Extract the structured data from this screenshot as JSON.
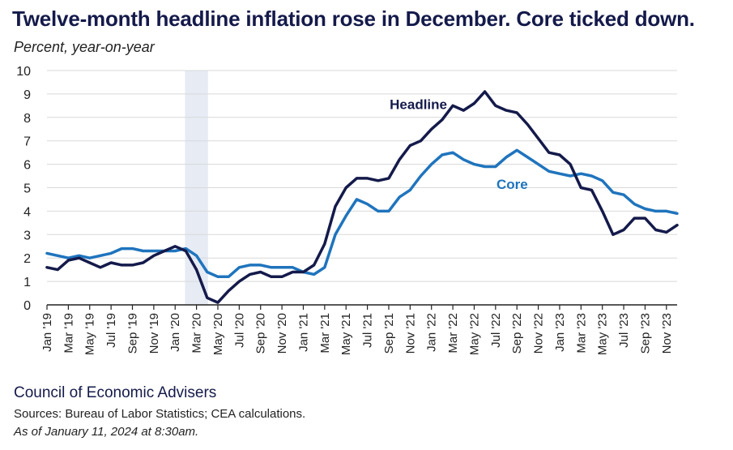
{
  "title": "Twelve-month headline inflation rose in December. Core ticked down.",
  "subtitle": "Percent, year-on-year",
  "footer": {
    "organization": "Council of Economic Advisers",
    "sources": "Sources: Bureau of Labor Statistics; CEA calculations.",
    "as_of": "As of January 11, 2024 at 8:30am."
  },
  "colors": {
    "headline": "#141a4a",
    "core": "#1f74bd",
    "recession": "#e6ebf4",
    "grid": "#d9d9d9"
  },
  "chart_data": {
    "type": "line",
    "ylim": [
      0,
      10
    ],
    "yticks": [
      0,
      1,
      2,
      3,
      4,
      5,
      6,
      7,
      8,
      9,
      10
    ],
    "grid": true,
    "shaded_period": [
      "Feb '20",
      "Apr '20"
    ],
    "x": [
      "Jan '19",
      "Feb '19",
      "Mar '19",
      "Apr '19",
      "May '19",
      "Jun '19",
      "Jul '19",
      "Aug '19",
      "Sep '19",
      "Oct '19",
      "Nov '19",
      "Dec '19",
      "Jan '20",
      "Feb '20",
      "Mar '20",
      "Apr '20",
      "May '20",
      "Jun '20",
      "Jul '20",
      "Aug '20",
      "Sep '20",
      "Oct '20",
      "Nov '20",
      "Dec '20",
      "Jan '21",
      "Feb '21",
      "Mar '21",
      "Apr '21",
      "May '21",
      "Jun '21",
      "Jul '21",
      "Aug '21",
      "Sep '21",
      "Oct '21",
      "Nov '21",
      "Dec '21",
      "Jan '22",
      "Feb '22",
      "Mar '22",
      "Apr '22",
      "May '22",
      "Jun '22",
      "Jul '22",
      "Aug '22",
      "Sep '22",
      "Oct '22",
      "Nov '22",
      "Dec '22",
      "Jan '23",
      "Feb '23",
      "Mar '23",
      "Apr '23",
      "May '23",
      "Jun '23",
      "Jul '23",
      "Aug '23",
      "Sep '23",
      "Oct '23",
      "Nov '23",
      "Dec '23"
    ],
    "xtick_labels": [
      "Jan '19",
      "Mar '19",
      "May '19",
      "Jul '19",
      "Sep '19",
      "Nov '19",
      "Jan '20",
      "Mar '20",
      "May '20",
      "Jul '20",
      "Sep '20",
      "Nov '20",
      "Jan '21",
      "Mar '21",
      "May '21",
      "Jul '21",
      "Sep '21",
      "Nov '21",
      "Jan '22",
      "Mar '22",
      "May '22",
      "Jul '22",
      "Sep '22",
      "Nov '22",
      "Jan '23",
      "Mar '23",
      "May '23",
      "Jul '23",
      "Sep '23",
      "Nov '23"
    ],
    "series": [
      {
        "name": "Headline",
        "label": "Headline",
        "values": [
          1.6,
          1.5,
          1.9,
          2.0,
          1.8,
          1.6,
          1.8,
          1.7,
          1.7,
          1.8,
          2.1,
          2.3,
          2.5,
          2.3,
          1.5,
          0.3,
          0.1,
          0.6,
          1.0,
          1.3,
          1.4,
          1.2,
          1.2,
          1.4,
          1.4,
          1.7,
          2.6,
          4.2,
          5.0,
          5.4,
          5.4,
          5.3,
          5.4,
          6.2,
          6.8,
          7.0,
          7.5,
          7.9,
          8.5,
          8.3,
          8.6,
          9.1,
          8.5,
          8.3,
          8.2,
          7.7,
          7.1,
          6.5,
          6.4,
          6.0,
          5.0,
          4.9,
          4.0,
          3.0,
          3.2,
          3.7,
          3.7,
          3.2,
          3.1,
          3.4
        ]
      },
      {
        "name": "Core",
        "label": "Core",
        "values": [
          2.2,
          2.1,
          2.0,
          2.1,
          2.0,
          2.1,
          2.2,
          2.4,
          2.4,
          2.3,
          2.3,
          2.3,
          2.3,
          2.4,
          2.1,
          1.4,
          1.2,
          1.2,
          1.6,
          1.7,
          1.7,
          1.6,
          1.6,
          1.6,
          1.4,
          1.3,
          1.6,
          3.0,
          3.8,
          4.5,
          4.3,
          4.0,
          4.0,
          4.6,
          4.9,
          5.5,
          6.0,
          6.4,
          6.5,
          6.2,
          6.0,
          5.9,
          5.9,
          6.3,
          6.6,
          6.3,
          6.0,
          5.7,
          5.6,
          5.5,
          5.6,
          5.5,
          5.3,
          4.8,
          4.7,
          4.3,
          4.1,
          4.0,
          4.0,
          3.9
        ]
      }
    ]
  }
}
